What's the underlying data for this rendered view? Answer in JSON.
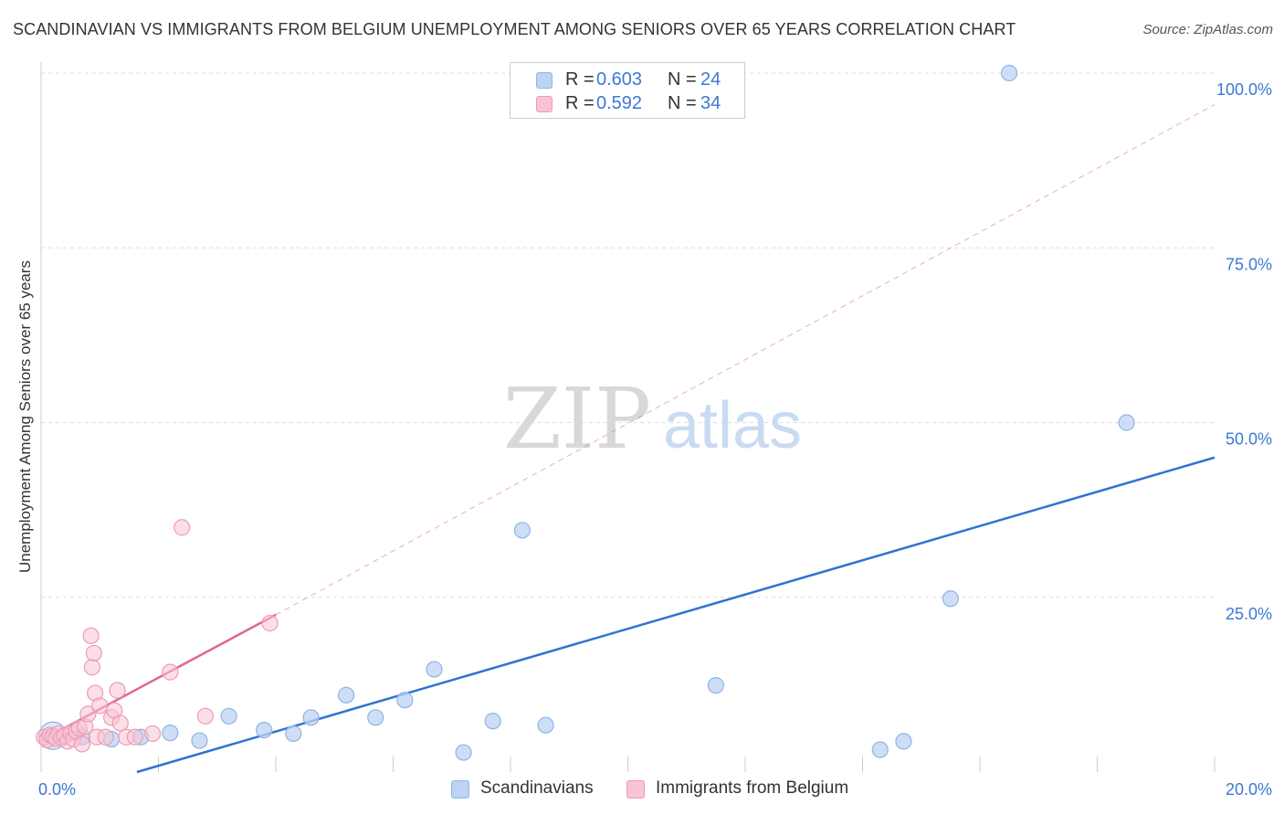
{
  "title": "SCANDINAVIAN VS IMMIGRANTS FROM BELGIUM UNEMPLOYMENT AMONG SENIORS OVER 65 YEARS CORRELATION CHART",
  "source": "Source: ZipAtlas.com",
  "watermark": {
    "zip": "ZIP",
    "atlas": "atlas"
  },
  "legend_top": [
    {
      "r_label": "R =",
      "r_value": "0.603",
      "n_label": "N =",
      "n_value": "24"
    },
    {
      "r_label": "R =",
      "r_value": "0.592",
      "n_label": "N =",
      "n_value": "34"
    }
  ],
  "colors": {
    "blue_fill": "#bcd3f3",
    "blue_stroke": "#8fb4e6",
    "blue_line": "#2f73d0",
    "pink_fill": "#f8c4d4",
    "pink_stroke": "#f09ab5",
    "pink_line": "#e0688f",
    "tick_text": "#3b78d4",
    "grid": "#dddddd"
  },
  "chart_data": {
    "type": "scatter",
    "title": "SCANDINAVIAN VS IMMIGRANTS FROM BELGIUM UNEMPLOYMENT AMONG SENIORS OVER 65 YEARS CORRELATION CHART",
    "xlabel": "",
    "ylabel": "Unemployment Among Seniors over 65 years",
    "xlim": [
      0,
      20
    ],
    "ylim": [
      0,
      100
    ],
    "x_tick_labels": [
      "0.0%",
      "20.0%"
    ],
    "y_ticks": [
      25,
      50,
      75,
      100
    ],
    "y_tick_labels": [
      "25.0%",
      "50.0%",
      "75.0%",
      "100.0%"
    ],
    "grid": true,
    "legend_position": "bottom",
    "series": [
      {
        "name": "Scandinavians",
        "color": "#bcd3f3",
        "points": [
          [
            0.2,
            5.2
          ],
          [
            0.7,
            5.0
          ],
          [
            1.2,
            4.7
          ],
          [
            1.7,
            5.0
          ],
          [
            2.2,
            5.6
          ],
          [
            2.7,
            4.5
          ],
          [
            3.2,
            8.0
          ],
          [
            3.8,
            6.0
          ],
          [
            4.3,
            5.5
          ],
          [
            4.6,
            7.8
          ],
          [
            5.2,
            11.0
          ],
          [
            5.7,
            7.8
          ],
          [
            6.2,
            10.3
          ],
          [
            6.7,
            14.7
          ],
          [
            7.2,
            2.8
          ],
          [
            7.7,
            7.3
          ],
          [
            8.2,
            34.6
          ],
          [
            8.6,
            6.7
          ],
          [
            11.5,
            12.4
          ],
          [
            14.3,
            3.2
          ],
          [
            14.7,
            4.4
          ],
          [
            15.5,
            24.8
          ],
          [
            16.5,
            100.0
          ],
          [
            18.5,
            50.0
          ]
        ],
        "trend": {
          "x": [
            0,
            20
          ],
          "y": [
            -4.0,
            45.0
          ]
        }
      },
      {
        "name": "Immigrants from Belgium",
        "color": "#f8c4d4",
        "points": [
          [
            0.05,
            5.0
          ],
          [
            0.1,
            4.6
          ],
          [
            0.15,
            5.3
          ],
          [
            0.2,
            5.1
          ],
          [
            0.25,
            4.8
          ],
          [
            0.3,
            5.5
          ],
          [
            0.35,
            4.9
          ],
          [
            0.4,
            5.2
          ],
          [
            0.45,
            4.4
          ],
          [
            0.5,
            5.6
          ],
          [
            0.55,
            4.7
          ],
          [
            0.6,
            5.8
          ],
          [
            0.65,
            6.3
          ],
          [
            0.7,
            4.0
          ],
          [
            0.75,
            6.5
          ],
          [
            0.8,
            8.3
          ],
          [
            0.85,
            19.5
          ],
          [
            0.87,
            15.0
          ],
          [
            0.9,
            17.0
          ],
          [
            0.92,
            11.3
          ],
          [
            0.95,
            5.0
          ],
          [
            1.0,
            9.5
          ],
          [
            1.1,
            5.0
          ],
          [
            1.2,
            7.8
          ],
          [
            1.25,
            8.8
          ],
          [
            1.3,
            11.7
          ],
          [
            1.35,
            7.0
          ],
          [
            1.45,
            5.0
          ],
          [
            1.6,
            5.0
          ],
          [
            1.9,
            5.5
          ],
          [
            2.2,
            14.3
          ],
          [
            2.4,
            35.0
          ],
          [
            2.8,
            8.0
          ],
          [
            3.9,
            21.3
          ]
        ],
        "trend": {
          "x": [
            0,
            4.0
          ],
          "y": [
            4.5,
            22.5
          ]
        },
        "trend_extension": {
          "x": [
            4.0,
            20
          ],
          "y": [
            22.5,
            95.5
          ]
        }
      }
    ]
  },
  "legend_bottom": [
    "Scandinavians",
    "Immigrants from Belgium"
  ]
}
